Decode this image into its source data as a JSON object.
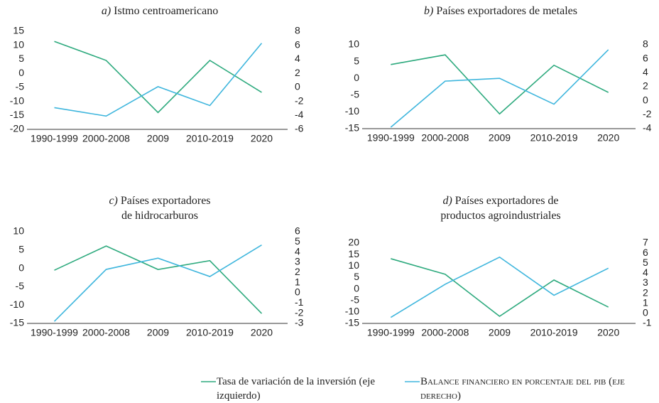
{
  "chart_data": [
    {
      "type": "line",
      "panel": "a)",
      "title": [
        "Istmo centroamericano"
      ],
      "categories": [
        "1990-1999",
        "2000-2008",
        "2009",
        "2010-2019",
        "2020"
      ],
      "ylim": [
        -20,
        15
      ],
      "yticks": [
        -20,
        -15,
        -10,
        -5,
        0,
        5,
        10,
        15
      ],
      "y2lim": [
        -6,
        8
      ],
      "y2ticks": [
        -6,
        -4,
        -2,
        0,
        2,
        4,
        6,
        8
      ],
      "series": [
        {
          "color": "#2eaa7e",
          "values": [
            11.4,
            4.6,
            -14,
            4.6,
            -6.8
          ]
        },
        {
          "color": "#3fb6dd",
          "axis": "y2",
          "values": [
            -2.9,
            -4.1,
            0.1,
            -2.6,
            6.3
          ]
        }
      ]
    },
    {
      "type": "line",
      "panel": "b)",
      "title": [
        "Países exportadores de metales"
      ],
      "categories": [
        "1990-1999",
        "2000-2008",
        "2009",
        "2010-2019",
        "2020"
      ],
      "ylim": [
        -15,
        10
      ],
      "yticks": [
        -15,
        -10,
        -5,
        0,
        5,
        10
      ],
      "y2lim": [
        -4,
        8
      ],
      "y2ticks": [
        -4,
        -2,
        0,
        2,
        4,
        6,
        8
      ],
      "series": [
        {
          "color": "#2eaa7e",
          "values": [
            4.1,
            7.0,
            -10.6,
            3.9,
            -4.2
          ]
        },
        {
          "color": "#3fb6dd",
          "axis": "y2",
          "values": [
            -3.8,
            2.8,
            3.2,
            -0.5,
            7.3
          ]
        }
      ]
    },
    {
      "type": "line",
      "panel": "c)",
      "title": [
        "Países exportadores",
        "de hidrocarburos"
      ],
      "categories": [
        "1990-1999",
        "2000-2008",
        "2009",
        "2010-2019",
        "2020"
      ],
      "ylim": [
        -15,
        10
      ],
      "yticks": [
        -15,
        -10,
        -5,
        0,
        5,
        10
      ],
      "y2lim": [
        -3,
        6
      ],
      "y2ticks": [
        -3,
        -2,
        -1,
        0,
        1,
        2,
        3,
        4,
        5,
        6
      ],
      "series": [
        {
          "color": "#2eaa7e",
          "values": [
            -0.5,
            6.1,
            -0.3,
            2.1,
            -12.3
          ]
        },
        {
          "color": "#3fb6dd",
          "axis": "y2",
          "values": [
            -2.8,
            2.3,
            3.4,
            1.6,
            4.7
          ]
        }
      ]
    },
    {
      "type": "line",
      "panel": "d)",
      "title": [
        "Países exportadores de",
        "productos agroindustriales"
      ],
      "categories": [
        "1990-1999",
        "2000-2008",
        "2009",
        "2010-2019",
        "2020"
      ],
      "ylim": [
        -15,
        20
      ],
      "yticks": [
        -15,
        -10,
        -5,
        0,
        5,
        10,
        15,
        20
      ],
      "y2lim": [
        -1,
        7
      ],
      "y2ticks": [
        -1,
        0,
        1,
        2,
        3,
        4,
        5,
        6,
        7
      ],
      "series": [
        {
          "color": "#2eaa7e",
          "values": [
            13.2,
            6.4,
            -11.9,
            3.9,
            -7.9
          ]
        },
        {
          "color": "#3fb6dd",
          "axis": "y2",
          "values": [
            -0.4,
            2.9,
            5.6,
            1.8,
            4.5
          ]
        }
      ]
    }
  ],
  "legend": [
    {
      "name": "Tasa de variación de la inversión (eje izquierdo)",
      "color": "#2eaa7e"
    },
    {
      "name": "Balance financiero en porcentaje del pib (eje derecho)",
      "color": "#3fb6dd"
    }
  ]
}
